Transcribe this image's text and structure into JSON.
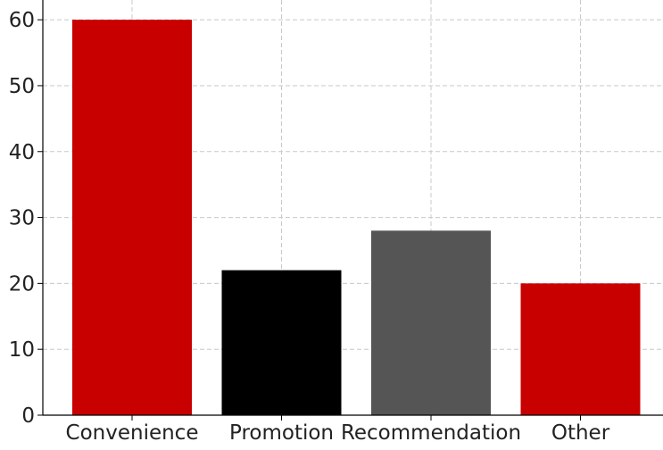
{
  "chart_data": {
    "type": "bar",
    "title": "",
    "xlabel": "",
    "ylabel": "",
    "categories": [
      "Convenience",
      "Promotion",
      "Recommendation",
      "Other"
    ],
    "values": [
      60,
      22,
      28,
      20
    ],
    "colors": [
      "#c80000",
      "#000000",
      "#555555",
      "#c80000"
    ],
    "ylim": [
      0,
      63
    ],
    "yticks": [
      0,
      10,
      20,
      30,
      40,
      50,
      60
    ],
    "grid": true,
    "legend": "none"
  }
}
